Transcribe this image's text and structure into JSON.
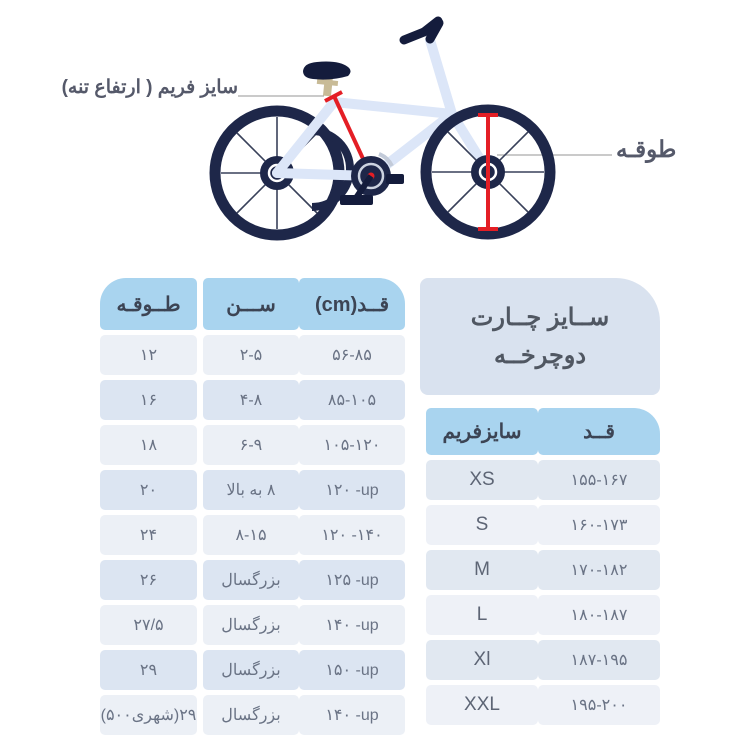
{
  "bike_diagram": {
    "frame_label": "سایز فریم ( ارتفاع تنه)",
    "rim_label": "طوقـه",
    "colors": {
      "wheel_navy": "#1e2749",
      "frame_blue": "#dce6f8",
      "accent_red": "#e41e25",
      "saddle_navy": "#141c3c",
      "seatpost_khaki": "#c8bb97",
      "connector_gray": "#aaaaaa"
    }
  },
  "left_table": {
    "headers": [
      "قــد(cm)",
      "ســـن",
      "طــوقـه"
    ],
    "rows": [
      [
        "۵۶-۸۵",
        "۲-۵",
        "۱۲"
      ],
      [
        "۸۵-۱۰۵",
        "۴-۸",
        "۱۶"
      ],
      [
        "۱۰۵-۱۲۰",
        "۶-۹",
        "۱۸"
      ],
      [
        "۱۲۰ -up",
        "۸ به بالا",
        "۲۰"
      ],
      [
        "۱۲۰ -۱۴۰",
        "۸-۱۵",
        "۲۴"
      ],
      [
        "۱۲۵ -up",
        "بزرگسال",
        "۲۶"
      ],
      [
        "۱۴۰ -up",
        "بزرگسال",
        "۲۷/۵"
      ],
      [
        "۱۵۰ -up",
        "بزرگسال",
        "۲۹"
      ],
      [
        "۱۴۰ -up",
        "بزرگسال",
        "۲۹(شهری۵۰۰)"
      ]
    ]
  },
  "right_table": {
    "title_line1": "ســایز چــارت",
    "title_line2": "دوچرخــه",
    "headers": [
      "قــد",
      "سایزفریم"
    ],
    "rows": [
      [
        "۱۵۵-۱۶۷",
        "XS"
      ],
      [
        "۱۶۰-۱۷۳",
        "S"
      ],
      [
        "۱۷۰-۱۸۲",
        "M"
      ],
      [
        "۱۸۰-۱۸۷",
        "L"
      ],
      [
        "۱۸۷-۱۹۵",
        "Xl"
      ],
      [
        "۱۹۵-۲۰۰",
        "XXL"
      ]
    ]
  }
}
